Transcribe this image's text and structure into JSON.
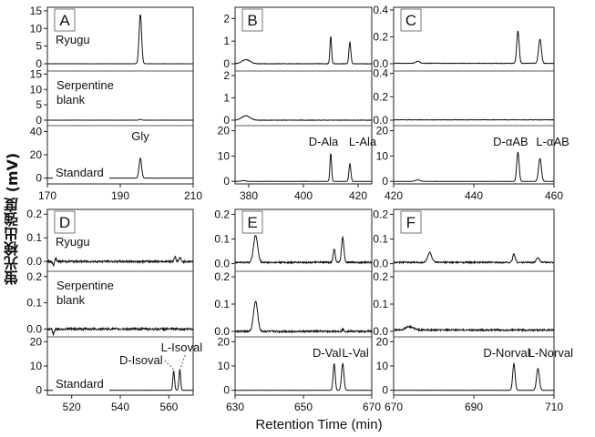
{
  "figure": {
    "y_axis_label": "蛍光検出強度 (mV)",
    "x_axis_label": "Retention Time (min)"
  },
  "chart_data": [
    {
      "type": "line",
      "panel": "A",
      "xlim": [
        170,
        210
      ],
      "xticks": [
        170,
        190,
        210
      ],
      "traces": [
        {
          "label": "Ryugu",
          "ylim": [
            0,
            16
          ],
          "yticks": [
            0,
            5,
            10,
            15
          ],
          "baseline": 0,
          "noise": 0.02,
          "peaks": [
            {
              "x": 195.5,
              "h": 14,
              "w": 0.35
            }
          ]
        },
        {
          "label": "Serpentine blank",
          "ylim": [
            0,
            16
          ],
          "yticks": [
            0,
            5,
            10,
            15
          ],
          "baseline": 0,
          "noise": 0.02,
          "peaks": [
            {
              "x": 195.5,
              "h": 0.3,
              "w": 0.3
            }
          ]
        },
        {
          "label": "Standard",
          "ylim": [
            -5,
            45
          ],
          "yticks": [
            0,
            20,
            40
          ],
          "baseline": 0,
          "noise": 0.05,
          "peaks": [
            {
              "x": 195.5,
              "h": 17,
              "w": 0.35
            }
          ],
          "annotations": [
            {
              "text": "Gly",
              "x": 195.5
            }
          ]
        }
      ]
    },
    {
      "type": "line",
      "panel": "B",
      "xlim": [
        375,
        425
      ],
      "xticks": [
        380,
        400,
        420
      ],
      "traces": [
        {
          "label": "",
          "ylim": [
            0,
            2.5
          ],
          "yticks": [
            0,
            1,
            2
          ],
          "baseline": 0,
          "noise": 0.01,
          "peaks": [
            {
              "x": 379,
              "h": 0.18,
              "w": 1.5
            },
            {
              "x": 410,
              "h": 1.2,
              "w": 0.3
            },
            {
              "x": 417,
              "h": 0.95,
              "w": 0.35
            }
          ]
        },
        {
          "label": "",
          "ylim": [
            0,
            2.2
          ],
          "yticks": [
            0,
            1,
            2
          ],
          "baseline": 0,
          "noise": 0.01,
          "peaks": [
            {
              "x": 379,
              "h": 0.2,
              "w": 1.5
            }
          ]
        },
        {
          "label": "",
          "ylim": [
            -1,
            22
          ],
          "yticks": [
            0,
            10,
            20
          ],
          "baseline": 0,
          "noise": 0.03,
          "peaks": [
            {
              "x": 378,
              "h": 0.3,
              "w": 0.8
            },
            {
              "x": 410,
              "h": 11,
              "w": 0.3
            },
            {
              "x": 417,
              "h": 7,
              "w": 0.35
            }
          ],
          "annotations": [
            {
              "text": "D-Ala",
              "x": 410
            },
            {
              "text": "L-Ala",
              "x": 417
            }
          ]
        }
      ]
    },
    {
      "type": "line",
      "panel": "C",
      "xlim": [
        420,
        460
      ],
      "xticks": [
        420,
        440,
        460
      ],
      "traces": [
        {
          "label": "",
          "ylim": [
            0,
            0.42
          ],
          "yticks": [
            0.0,
            0.2,
            0.4
          ],
          "baseline": 0.003,
          "noise": 0.002,
          "peaks": [
            {
              "x": 426,
              "h": 0.015,
              "w": 0.5
            },
            {
              "x": 451,
              "h": 0.24,
              "w": 0.3
            },
            {
              "x": 456.5,
              "h": 0.18,
              "w": 0.35
            }
          ]
        },
        {
          "label": "",
          "ylim": [
            0,
            0.42
          ],
          "yticks": [
            0.0,
            0.2,
            0.4
          ],
          "baseline": 0.003,
          "noise": 0.002,
          "peaks": []
        },
        {
          "label": "",
          "ylim": [
            -1,
            22
          ],
          "yticks": [
            0,
            10,
            20
          ],
          "baseline": 0,
          "noise": 0.03,
          "peaks": [
            {
              "x": 426,
              "h": 0.6,
              "w": 0.6
            },
            {
              "x": 451,
              "h": 11.5,
              "w": 0.3
            },
            {
              "x": 456.5,
              "h": 9,
              "w": 0.35
            }
          ],
          "annotations": [
            {
              "text": "D-αAB",
              "x": 451
            },
            {
              "text": "L-αAB",
              "x": 456.5
            }
          ]
        }
      ]
    },
    {
      "type": "line",
      "panel": "D",
      "xlim": [
        510,
        570
      ],
      "xticks": [
        520,
        540,
        560
      ],
      "traces": [
        {
          "label": "Ryugu",
          "ylim": [
            -0.03,
            0.22
          ],
          "yticks": [
            0.0,
            0.1,
            0.2
          ],
          "baseline": 0.0,
          "noise": 0.004,
          "peaks": [
            {
              "x": 512.5,
              "h": -0.018,
              "w": 0.3
            },
            {
              "x": 513.5,
              "h": 0.015,
              "w": 0.3
            },
            {
              "x": 562.5,
              "h": 0.02,
              "w": 0.35
            },
            {
              "x": 564.5,
              "h": 0.016,
              "w": 0.35
            }
          ]
        },
        {
          "label": "Serpentine blank",
          "ylim": [
            -0.03,
            0.22
          ],
          "yticks": [
            0.0,
            0.1,
            0.2
          ],
          "baseline": 0.0,
          "noise": 0.004,
          "peaks": [
            {
              "x": 512.5,
              "h": -0.022,
              "w": 0.3
            }
          ]
        },
        {
          "label": "Standard",
          "ylim": [
            -2,
            22
          ],
          "yticks": [
            0,
            10,
            20
          ],
          "baseline": 0,
          "noise": 0.02,
          "peaks": [
            {
              "x": 562,
              "h": 8,
              "w": 0.35
            },
            {
              "x": 564.5,
              "h": 8.5,
              "w": 0.35
            }
          ],
          "annotations": [
            {
              "text": "D-Isoval",
              "x": 562
            },
            {
              "text": "L-Isoval",
              "x": 564.5
            }
          ]
        }
      ]
    },
    {
      "type": "line",
      "panel": "E",
      "xlim": [
        630,
        670
      ],
      "xticks": [
        630,
        650,
        670
      ],
      "traces": [
        {
          "label": "",
          "ylim": [
            -0.02,
            0.22
          ],
          "yticks": [
            0.0,
            0.1,
            0.2
          ],
          "baseline": 0.005,
          "noise": 0.003,
          "peaks": [
            {
              "x": 636,
              "h": 0.11,
              "w": 0.6
            },
            {
              "x": 659,
              "h": 0.055,
              "w": 0.3
            },
            {
              "x": 661.5,
              "h": 0.1,
              "w": 0.35
            }
          ]
        },
        {
          "label": "",
          "ylim": [
            -0.02,
            0.22
          ],
          "yticks": [
            0.0,
            0.1,
            0.2
          ],
          "baseline": 0.0,
          "noise": 0.003,
          "peaks": [
            {
              "x": 636,
              "h": 0.11,
              "w": 0.6
            },
            {
              "x": 661.5,
              "h": 0.007,
              "w": 0.3
            }
          ]
        },
        {
          "label": "",
          "ylim": [
            -2,
            22
          ],
          "yticks": [
            0,
            10,
            20
          ],
          "baseline": 0,
          "noise": 0.02,
          "peaks": [
            {
              "x": 659,
              "h": 11,
              "w": 0.3
            },
            {
              "x": 661.5,
              "h": 11,
              "w": 0.35
            }
          ],
          "annotations": [
            {
              "text": "D-Val",
              "x": 659
            },
            {
              "text": "L-Val",
              "x": 661.5
            }
          ]
        }
      ]
    },
    {
      "type": "line",
      "panel": "F",
      "xlim": [
        670,
        710
      ],
      "xticks": [
        670,
        690,
        710
      ],
      "traces": [
        {
          "label": "",
          "ylim": [
            -0.02,
            0.22
          ],
          "yticks": [
            0.0,
            0.1,
            0.2
          ],
          "baseline": 0.005,
          "noise": 0.003,
          "peaks": [
            {
              "x": 679,
              "h": 0.04,
              "w": 0.5
            },
            {
              "x": 700,
              "h": 0.035,
              "w": 0.3
            },
            {
              "x": 706,
              "h": 0.022,
              "w": 0.35
            }
          ]
        },
        {
          "label": "",
          "ylim": [
            -0.02,
            0.22
          ],
          "yticks": [
            0.0,
            0.1,
            0.2
          ],
          "baseline": 0.005,
          "noise": 0.003,
          "peaks": [
            {
              "x": 674,
              "h": 0.012,
              "w": 1.0
            }
          ]
        },
        {
          "label": "",
          "ylim": [
            -2,
            22
          ],
          "yticks": [
            0,
            10,
            20
          ],
          "baseline": 0,
          "noise": 0.02,
          "peaks": [
            {
              "x": 700,
              "h": 11,
              "w": 0.3
            },
            {
              "x": 706,
              "h": 9,
              "w": 0.35
            }
          ],
          "annotations": [
            {
              "text": "D-Norval",
              "x": 700
            },
            {
              "text": "L-Norval",
              "x": 706
            }
          ]
        }
      ]
    }
  ]
}
